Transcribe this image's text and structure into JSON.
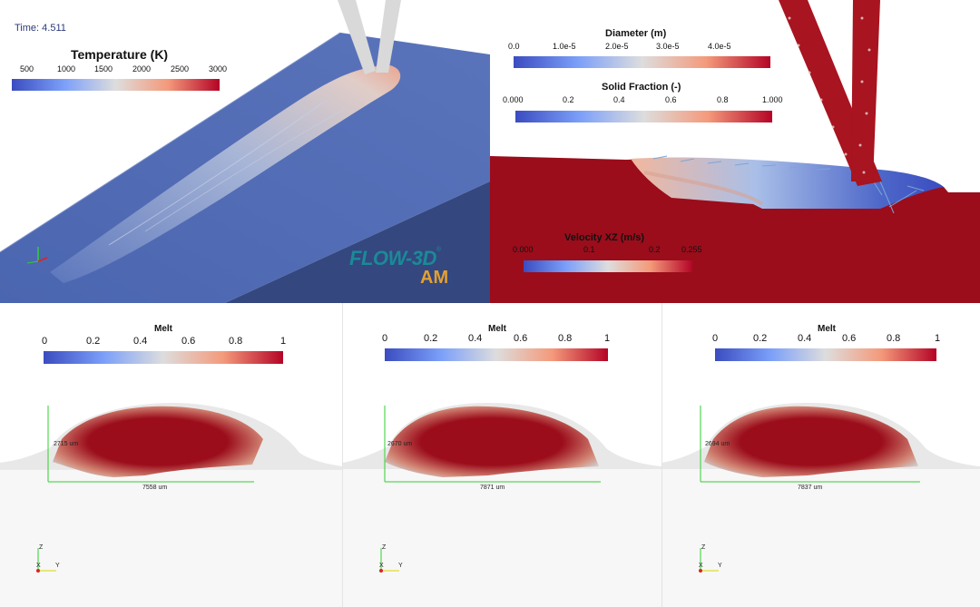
{
  "top_left": {
    "time": "Time: 4.511",
    "colorbar": {
      "title": "Temperature (K)",
      "ticks": [
        "500",
        "1000",
        "1500",
        "2000",
        "2500",
        "3000"
      ]
    },
    "logo": {
      "main": "FLOW-3D",
      "reg": "®",
      "sub": "AM"
    }
  },
  "top_right": {
    "diameter": {
      "title": "Diameter (m)",
      "ticks": [
        "0.0",
        "1.0e-5",
        "2.0e-5",
        "3.0e-5",
        "4.0e-5"
      ]
    },
    "solid_fraction": {
      "title": "Solid Fraction (-)",
      "ticks": [
        "0.000",
        "0.2",
        "0.4",
        "0.6",
        "0.8",
        "1.000"
      ]
    },
    "velocity": {
      "title": "Velocity XZ (m/s)",
      "ticks": [
        "0.000",
        "0.1",
        "0.2",
        "0.255"
      ]
    }
  },
  "bottom_panels": [
    {
      "colorbar": {
        "title": "Melt",
        "ticks": [
          "0",
          "0.2",
          "0.4",
          "0.6",
          "0.8",
          "1"
        ]
      },
      "height_label": "2715 um",
      "width_label": "7558 um",
      "axes": {
        "z": "Z",
        "x": "X",
        "y": "Y"
      }
    },
    {
      "colorbar": {
        "title": "Melt",
        "ticks": [
          "0",
          "0.2",
          "0.4",
          "0.6",
          "0.8",
          "1"
        ]
      },
      "height_label": "2670 um",
      "width_label": "7871 um",
      "axes": {
        "z": "Z",
        "x": "X",
        "y": "Y"
      }
    },
    {
      "colorbar": {
        "title": "Melt",
        "ticks": [
          "0",
          "0.2",
          "0.4",
          "0.6",
          "0.8",
          "1"
        ]
      },
      "height_label": "2694 um",
      "width_label": "7837 um",
      "axes": {
        "z": "Z",
        "x": "X",
        "y": "Y"
      }
    }
  ],
  "colors": {
    "cool": "#3b4cc0",
    "hot": "#b40426",
    "mid": "#dddddd",
    "substrate": "#3f5aa0",
    "melt": "#9b0d1b",
    "bead": "#e6e6e6",
    "dim_line": "#2fcf2f"
  }
}
